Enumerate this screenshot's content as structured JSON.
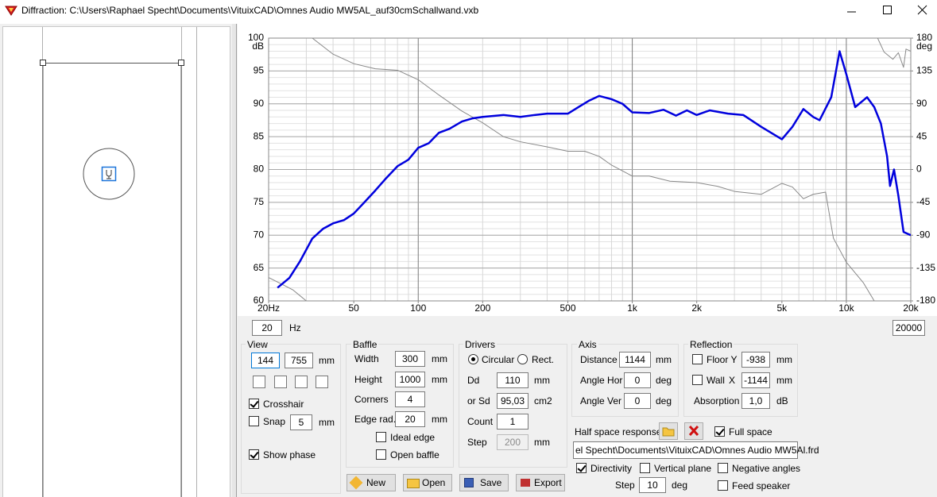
{
  "window": {
    "title": "Diffraction: C:\\Users\\Raphael Specht\\Documents\\VituixCAD\\Omnes Audio MW5AL_auf30cmSchallwand.vxb"
  },
  "chart_data": {
    "type": "line",
    "xscale": "log",
    "grid": true,
    "xlim": [
      20,
      20000
    ],
    "ylim": [
      60,
      100
    ],
    "y2lim": [
      -180,
      180
    ],
    "y_unit": "dB",
    "y2_unit": "deg",
    "xticks": [
      {
        "value": 20,
        "label": "20Hz"
      },
      50,
      100,
      200,
      500,
      {
        "value": 1000,
        "label": "1k"
      },
      {
        "value": 2000,
        "label": "2k"
      },
      {
        "value": 5000,
        "label": "5k"
      },
      {
        "value": 10000,
        "label": "10k"
      },
      {
        "value": 20000,
        "label": "20k"
      }
    ],
    "yticks": [
      60,
      65,
      70,
      75,
      80,
      85,
      90,
      95,
      100
    ],
    "y2ticks": [
      -180,
      -135,
      -90,
      -45,
      0,
      45,
      90,
      135,
      180
    ],
    "series": [
      {
        "color": "#0000dd",
        "x": [
          22,
          25,
          28,
          32,
          36,
          40,
          45,
          50,
          56,
          63,
          70,
          80,
          90,
          100,
          112,
          125,
          140,
          160,
          180,
          200,
          250,
          300,
          350,
          400,
          500,
          560,
          630,
          700,
          800,
          900,
          1000,
          1200,
          1400,
          1600,
          1800,
          2000,
          2300,
          2800,
          3300,
          4000,
          5000,
          5600,
          6300,
          7000,
          7500,
          8500,
          9300,
          10000,
          11000,
          12500,
          13500,
          14500,
          15500,
          16000,
          16700,
          17500,
          18500,
          20000
        ],
        "values": [
          62,
          63.5,
          66,
          69.5,
          71,
          71.8,
          72.3,
          73.3,
          75,
          76.8,
          78.5,
          80.5,
          81.5,
          83.3,
          84,
          85.6,
          86.2,
          87.3,
          87.8,
          88,
          88.3,
          88,
          88.3,
          88.5,
          88.5,
          89.5,
          90.5,
          91.2,
          90.7,
          90,
          88.7,
          88.6,
          89.1,
          88.2,
          89,
          88.3,
          89,
          88.5,
          88.3,
          86.5,
          84.6,
          86.5,
          89.2,
          88,
          87.5,
          91,
          98,
          94.5,
          89.5,
          91,
          89.5,
          87,
          82,
          77.5,
          80,
          76,
          70.5,
          70
        ]
      },
      {
        "color": "#888888",
        "axis": "y2",
        "x": [
          20,
          23,
          26,
          30,
          31,
          32,
          40,
          50,
          63,
          80,
          100,
          125,
          160,
          200,
          250,
          300,
          400,
          500,
          600,
          700,
          800,
          1000,
          1200,
          1500,
          2000,
          2500,
          3000,
          4000,
          5000,
          5600,
          6300,
          7000,
          8000,
          8700,
          10000,
          12000,
          13500,
          13800,
          14000,
          15000,
          16500,
          17500,
          18500,
          19000,
          20000
        ],
        "values": [
          -148,
          -157,
          -165,
          -180,
          null,
          180,
          158,
          145,
          138,
          136,
          123,
          102,
          80,
          64,
          45,
          38,
          31,
          25,
          25,
          18,
          6,
          -9,
          -9,
          -16,
          -18,
          -23,
          -30,
          -34,
          -19,
          -24,
          -40,
          -34,
          -31,
          -94,
          -127,
          -155,
          -180,
          null,
          180,
          161,
          151,
          160,
          140,
          165,
          162
        ]
      }
    ]
  },
  "frequency_range": {
    "min": "20",
    "unit": "Hz",
    "max": "20000"
  },
  "view": {
    "title": "View",
    "x": "144",
    "y": "755",
    "unit": "mm",
    "crosshair": "Crosshair",
    "snap": "Snap",
    "snap_value": "5",
    "show_phase": "Show phase"
  },
  "baffle": {
    "title": "Baffle",
    "width_label": "Width",
    "width": "300",
    "height_label": "Height",
    "height": "1000",
    "corners_label": "Corners",
    "corners": "4",
    "edge_label": "Edge rad.",
    "edge": "20",
    "unit": "mm",
    "ideal_edge": "Ideal edge",
    "open_baffle": "Open baffle"
  },
  "drivers": {
    "title": "Drivers",
    "circular": "Circular",
    "rect": "Rect.",
    "dd_label": "Dd",
    "dd": "110",
    "sd_label": "or Sd",
    "sd": "95,03",
    "sd_unit": "cm2",
    "count_label": "Count",
    "count": "1",
    "step_label": "Step",
    "step": "200",
    "unit": "mm"
  },
  "axis": {
    "title": "Axis",
    "distance_label": "Distance",
    "distance": "1144",
    "unit": "mm",
    "hor_label": "Angle Hor",
    "hor": "0",
    "ver_label": "Angle Ver",
    "ver": "0",
    "angle_unit": "deg"
  },
  "reflection": {
    "title": "Reflection",
    "floor_label": "Floor Y",
    "floor": "-938",
    "wall_label": "Wall",
    "wall_axis": "X",
    "wall": "-1144",
    "unit": "mm",
    "absorption_label": "Absorption",
    "absorption": "1,0",
    "absorption_unit": "dB"
  },
  "half_space": {
    "label": "Half space response",
    "full_space": "Full space",
    "file": "el Specht\\Documents\\VituixCAD\\Omnes Audio MW5Al.frd",
    "directivity": "Directivity",
    "vertical_plane": "Vertical plane",
    "negative_angles": "Negative angles",
    "step_label": "Step",
    "step": "10",
    "step_unit": "deg",
    "feed_speaker": "Feed speaker"
  },
  "buttons": [
    "New",
    "Open",
    "Save",
    "Export"
  ]
}
